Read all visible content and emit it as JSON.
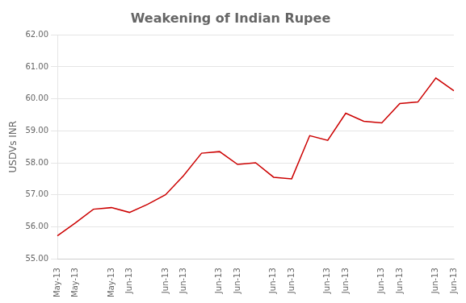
{
  "chart_data": {
    "type": "line",
    "title": "Weakening of Indian Rupee",
    "ylabel": "USDVs INR",
    "categories": [
      "May-13",
      "May-13",
      null,
      "May-13",
      "Jun-13",
      null,
      "Jun-13",
      "Jun-13",
      null,
      "Jun-13",
      "Jun-13",
      null,
      "Jun-13",
      "Jun-13",
      null,
      "Jun-13",
      "Jun-13",
      null,
      "Jun-13",
      "Jun-13",
      null,
      "Jun-13",
      "Jun-13"
    ],
    "values": [
      55.72,
      56.12,
      56.55,
      56.6,
      56.45,
      56.7,
      57.0,
      57.6,
      58.3,
      58.35,
      57.95,
      58.0,
      57.55,
      57.5,
      58.85,
      58.7,
      59.55,
      59.3,
      59.25,
      59.85,
      59.9,
      60.65,
      60.25
    ],
    "color": "#CC0000",
    "ylim": [
      55.0,
      62.0
    ],
    "yticks": [
      {
        "value": 55,
        "label": "55.00"
      },
      {
        "value": 56,
        "label": "56.00"
      },
      {
        "value": 57,
        "label": "57.00"
      },
      {
        "value": 58,
        "label": "58.00"
      },
      {
        "value": 59,
        "label": "59.00"
      },
      {
        "value": 60,
        "label": "60.00"
      },
      {
        "value": 61,
        "label": "61.00"
      },
      {
        "value": 62,
        "label": "62.00"
      }
    ],
    "grid": true
  }
}
